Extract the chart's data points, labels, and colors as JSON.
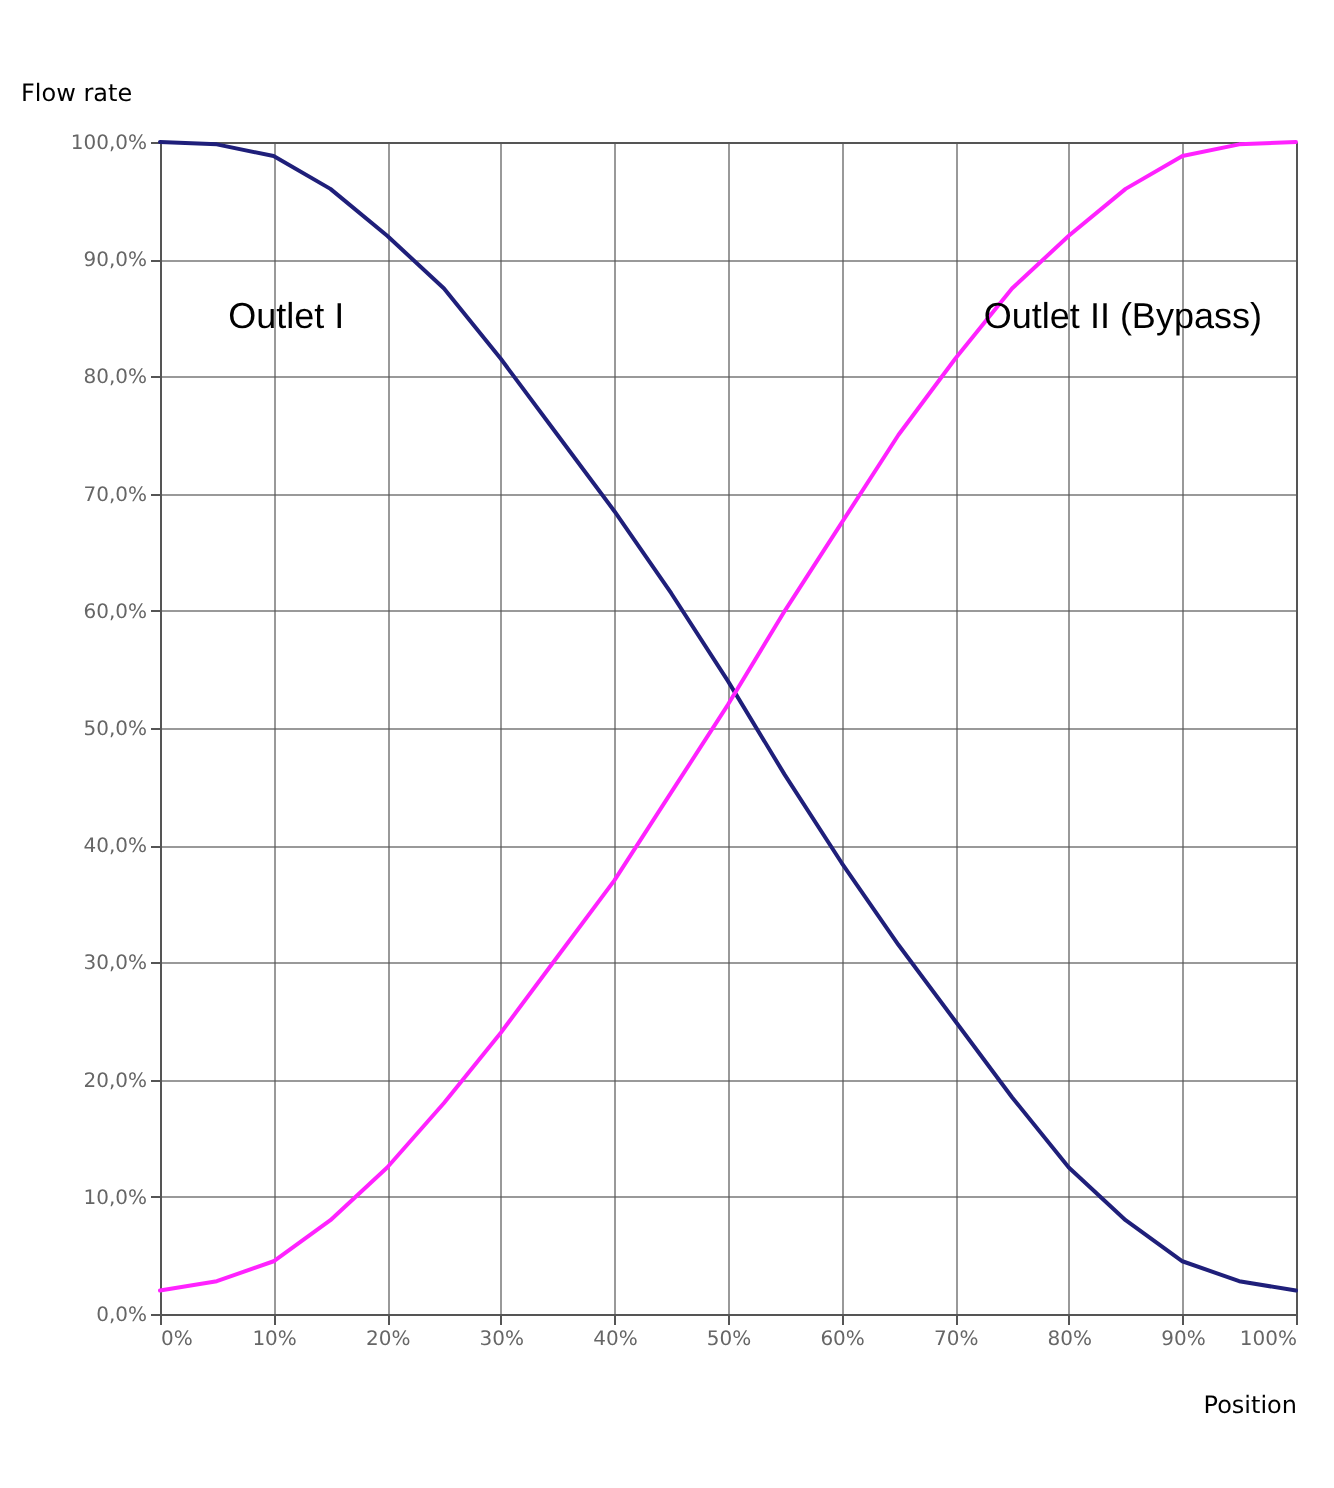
{
  "chart_data": {
    "type": "line",
    "xlabel": "Position",
    "ylabel": "Flow rate",
    "x": [
      0,
      5,
      10,
      15,
      20,
      25,
      30,
      35,
      40,
      45,
      50,
      55,
      60,
      65,
      70,
      75,
      80,
      85,
      90,
      95,
      100
    ],
    "series": [
      {
        "name": "Outlet I",
        "color": "#1f1f7a",
        "values": [
          100,
          99.8,
          98.8,
          96,
          92,
          87.5,
          81.5,
          75,
          68.5,
          61.5,
          54,
          46,
          38.5,
          31.5,
          25,
          18.5,
          12.5,
          8,
          4.5,
          2.8,
          2
        ]
      },
      {
        "name": "Outlet II (Bypass)",
        "color": "#ff22ff",
        "values": [
          2,
          2.8,
          4.5,
          8,
          12.5,
          18,
          24,
          30.5,
          37,
          44.5,
          52,
          60,
          67.5,
          75,
          81.5,
          87.5,
          92,
          96,
          98.8,
          99.8,
          100
        ]
      }
    ],
    "xlim": [
      0,
      100
    ],
    "ylim": [
      0,
      100
    ],
    "xticks": [
      {
        "value": 0,
        "label": "0%"
      },
      {
        "value": 10,
        "label": "10%"
      },
      {
        "value": 20,
        "label": "20%"
      },
      {
        "value": 30,
        "label": "30%"
      },
      {
        "value": 40,
        "label": "40%"
      },
      {
        "value": 50,
        "label": "50%"
      },
      {
        "value": 60,
        "label": "60%"
      },
      {
        "value": 70,
        "label": "70%"
      },
      {
        "value": 80,
        "label": "80%"
      },
      {
        "value": 90,
        "label": "90%"
      },
      {
        "value": 100,
        "label": "100%"
      }
    ],
    "yticks": [
      {
        "value": 0,
        "label": "0,0%"
      },
      {
        "value": 10,
        "label": "10,0%"
      },
      {
        "value": 20,
        "label": "20,0%"
      },
      {
        "value": 30,
        "label": "30,0%"
      },
      {
        "value": 40,
        "label": "40,0%"
      },
      {
        "value": 50,
        "label": "50,0%"
      },
      {
        "value": 60,
        "label": "60,0%"
      },
      {
        "value": 70,
        "label": "70,0%"
      },
      {
        "value": 80,
        "label": "80,0%"
      },
      {
        "value": 90,
        "label": "90,0%"
      },
      {
        "value": 100,
        "label": "100,0%"
      }
    ],
    "grid": true,
    "legend": false,
    "marker": "none",
    "line_style": "solid"
  }
}
